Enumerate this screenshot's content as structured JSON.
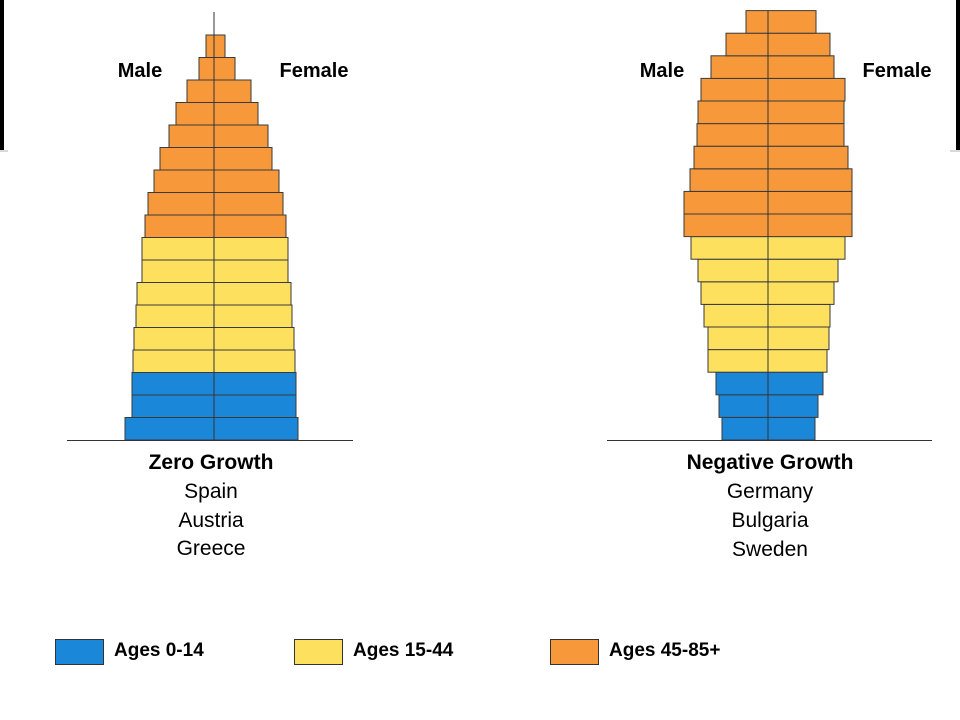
{
  "legend": [
    {
      "key": "young",
      "label": "Ages 0-14",
      "color": "#1b87d8"
    },
    {
      "key": "adult",
      "label": "Ages 15-44",
      "color": "#fde05e"
    },
    {
      "key": "old",
      "label": "Ages 45-85+",
      "color": "#f7993a"
    }
  ],
  "chart_data": [
    {
      "type": "bar",
      "orientation": "horizontal-population-pyramid",
      "title": "Zero Growth",
      "countries": [
        "Spain",
        "Austria",
        "Greece"
      ],
      "left_label": "Male",
      "right_label": "Female",
      "age_groups_bottom_to_top": [
        {
          "group": "young",
          "male": 89,
          "female": 84
        },
        {
          "group": "young",
          "male": 82,
          "female": 82
        },
        {
          "group": "young",
          "male": 82,
          "female": 82
        },
        {
          "group": "adult",
          "male": 81,
          "female": 81
        },
        {
          "group": "adult",
          "male": 80,
          "female": 80
        },
        {
          "group": "adult",
          "male": 78,
          "female": 78
        },
        {
          "group": "adult",
          "male": 77,
          "female": 77
        },
        {
          "group": "adult",
          "male": 72,
          "female": 74
        },
        {
          "group": "adult",
          "male": 72,
          "female": 74
        },
        {
          "group": "old",
          "male": 69,
          "female": 72
        },
        {
          "group": "old",
          "male": 66,
          "female": 69
        },
        {
          "group": "old",
          "male": 60,
          "female": 65
        },
        {
          "group": "old",
          "male": 54,
          "female": 58
        },
        {
          "group": "old",
          "male": 45,
          "female": 54
        },
        {
          "group": "old",
          "male": 38,
          "female": 44
        },
        {
          "group": "old",
          "male": 27,
          "female": 37
        },
        {
          "group": "old",
          "male": 15,
          "female": 21
        },
        {
          "group": "old",
          "male": 8,
          "female": 11
        }
      ]
    },
    {
      "type": "bar",
      "orientation": "horizontal-population-pyramid",
      "title": "Negative Growth",
      "countries": [
        "Germany",
        "Bulgaria",
        "Sweden"
      ],
      "left_label": "Male",
      "right_label": "Female",
      "age_groups_bottom_to_top": [
        {
          "group": "young",
          "male": 46,
          "female": 47
        },
        {
          "group": "young",
          "male": 49,
          "female": 50
        },
        {
          "group": "young",
          "male": 52,
          "female": 55
        },
        {
          "group": "adult",
          "male": 60,
          "female": 59
        },
        {
          "group": "adult",
          "male": 60,
          "female": 61
        },
        {
          "group": "adult",
          "male": 64,
          "female": 62
        },
        {
          "group": "adult",
          "male": 67,
          "female": 66
        },
        {
          "group": "adult",
          "male": 70,
          "female": 70
        },
        {
          "group": "adult",
          "male": 77,
          "female": 77
        },
        {
          "group": "old",
          "male": 84,
          "female": 84
        },
        {
          "group": "old",
          "male": 84,
          "female": 84
        },
        {
          "group": "old",
          "male": 78,
          "female": 84
        },
        {
          "group": "old",
          "male": 74,
          "female": 80
        },
        {
          "group": "old",
          "male": 71,
          "female": 76
        },
        {
          "group": "old",
          "male": 70,
          "female": 76
        },
        {
          "group": "old",
          "male": 67,
          "female": 77
        },
        {
          "group": "old",
          "male": 57,
          "female": 66
        },
        {
          "group": "old",
          "male": 42,
          "female": 62
        },
        {
          "group": "old",
          "male": 22,
          "female": 48
        }
      ]
    }
  ]
}
